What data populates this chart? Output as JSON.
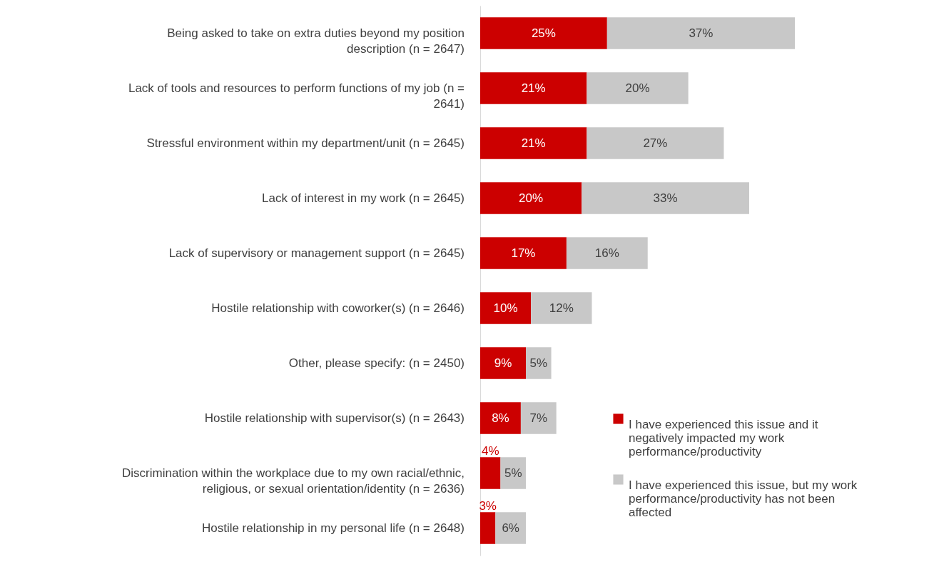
{
  "chart_data": {
    "type": "bar",
    "orientation": "horizontal",
    "stacked": true,
    "legend": "bottom right",
    "grid": false,
    "categories": [
      "Being asked to take on extra duties beyond my position description (n = 2647)",
      "Lack of tools and resources to perform functions of my job (n = 2641)",
      "Stressful environment within my department/unit (n = 2645)",
      "Lack of interest in my work (n = 2645)",
      "Lack of supervisory or management support (n = 2645)",
      "Hostile relationship with coworker(s) (n = 2646)",
      "Other, please specify: (n = 2450)",
      "Hostile relationship with supervisor(s) (n = 2643)",
      "Discrimination within the workplace due to my own racial/ethnic, religious, or sexual orientation/identity (n = 2636)",
      "Hostile relationship in my personal life (n = 2648)"
    ],
    "series": [
      {
        "name": "I have experienced this issue and it negatively impacted my work performance/productivity",
        "color": "#cc0000",
        "values": [
          25,
          21,
          21,
          20,
          17,
          10,
          9,
          8,
          4,
          3
        ],
        "value_labels": [
          "25%",
          "21%",
          "21%",
          "20%",
          "17%",
          "10%",
          "9%",
          "8%",
          "4%",
          "3%"
        ]
      },
      {
        "name": "I have experienced this issue, but my work performance/productivity has not been affected",
        "color": "#c8c8c8",
        "values": [
          37,
          20,
          27,
          33,
          16,
          12,
          5,
          7,
          5,
          6
        ],
        "value_labels": [
          "37%",
          "20%",
          "27%",
          "33%",
          "16%",
          "12%",
          "5%",
          "7%",
          "5%",
          "6%"
        ]
      }
    ]
  }
}
